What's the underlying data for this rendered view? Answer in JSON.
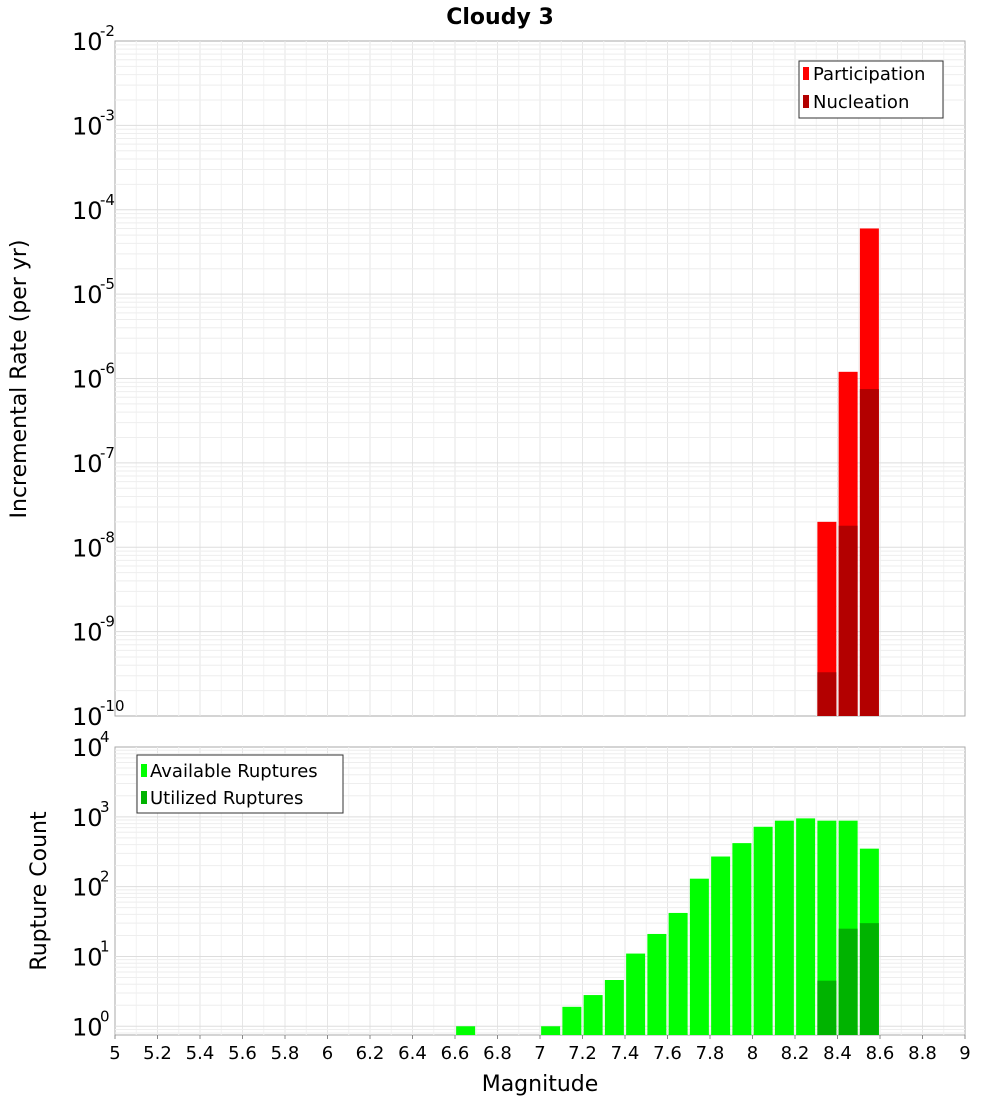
{
  "chart_data": [
    {
      "type": "bar",
      "title": "Cloudy 3",
      "xlabel": "",
      "ylabel": "Incremental Rate (per yr)",
      "yscale": "log",
      "ylim": [
        1e-10,
        0.01
      ],
      "xlim": [
        5,
        9
      ],
      "grid": true,
      "legend_position": "top-right",
      "colors": {
        "Participation": "#ff0000",
        "Nucleation": "#b30000"
      },
      "series": [
        {
          "name": "Participation",
          "x": [
            8.35,
            8.45,
            8.55
          ],
          "values": [
            2e-08,
            1.2e-06,
            6e-05
          ]
        },
        {
          "name": "Nucleation",
          "x": [
            8.35,
            8.45,
            8.55
          ],
          "values": [
            3.3e-10,
            1.8e-08,
            7.5e-07
          ]
        }
      ],
      "yticks": [
        {
          "base": "10",
          "exp": "-2"
        },
        {
          "base": "10",
          "exp": "-3"
        },
        {
          "base": "10",
          "exp": "-4"
        },
        {
          "base": "10",
          "exp": "-5"
        },
        {
          "base": "10",
          "exp": "-6"
        },
        {
          "base": "10",
          "exp": "-7"
        },
        {
          "base": "10",
          "exp": "-8"
        },
        {
          "base": "10",
          "exp": "-9"
        },
        {
          "base": "10",
          "exp": "-10"
        }
      ]
    },
    {
      "type": "bar",
      "title": "",
      "xlabel": "Magnitude",
      "ylabel": "Rupture Count",
      "yscale": "log",
      "ylim": [
        0.75,
        10000
      ],
      "xlim": [
        5,
        9
      ],
      "grid": true,
      "legend_position": "top-left",
      "colors": {
        "Available Ruptures": "#00ff00",
        "Utilized Ruptures": "#00b300"
      },
      "series": [
        {
          "name": "Available Ruptures",
          "x": [
            6.65,
            7.05,
            7.15,
            7.25,
            7.35,
            7.45,
            7.55,
            7.65,
            7.75,
            7.85,
            7.95,
            8.05,
            8.15,
            8.25,
            8.35,
            8.45,
            8.55
          ],
          "values": [
            1,
            1,
            1.9,
            2.8,
            4.6,
            11,
            21,
            42,
            130,
            270,
            420,
            720,
            880,
            950,
            880,
            880,
            350
          ]
        },
        {
          "name": "Utilized Ruptures",
          "x": [
            8.35,
            8.45,
            8.55
          ],
          "values": [
            4.5,
            25,
            30
          ]
        }
      ],
      "xticks": [
        "5",
        "5.2",
        "5.4",
        "5.6",
        "5.8",
        "6",
        "6.2",
        "6.4",
        "6.6",
        "6.8",
        "7",
        "7.2",
        "7.4",
        "7.6",
        "7.8",
        "8",
        "8.2",
        "8.4",
        "8.6",
        "8.8",
        "9"
      ],
      "yticks": [
        {
          "base": "10",
          "exp": "4"
        },
        {
          "base": "10",
          "exp": "3"
        },
        {
          "base": "10",
          "exp": "2"
        },
        {
          "base": "10",
          "exp": "1"
        },
        {
          "base": "10",
          "exp": "0"
        }
      ]
    }
  ]
}
